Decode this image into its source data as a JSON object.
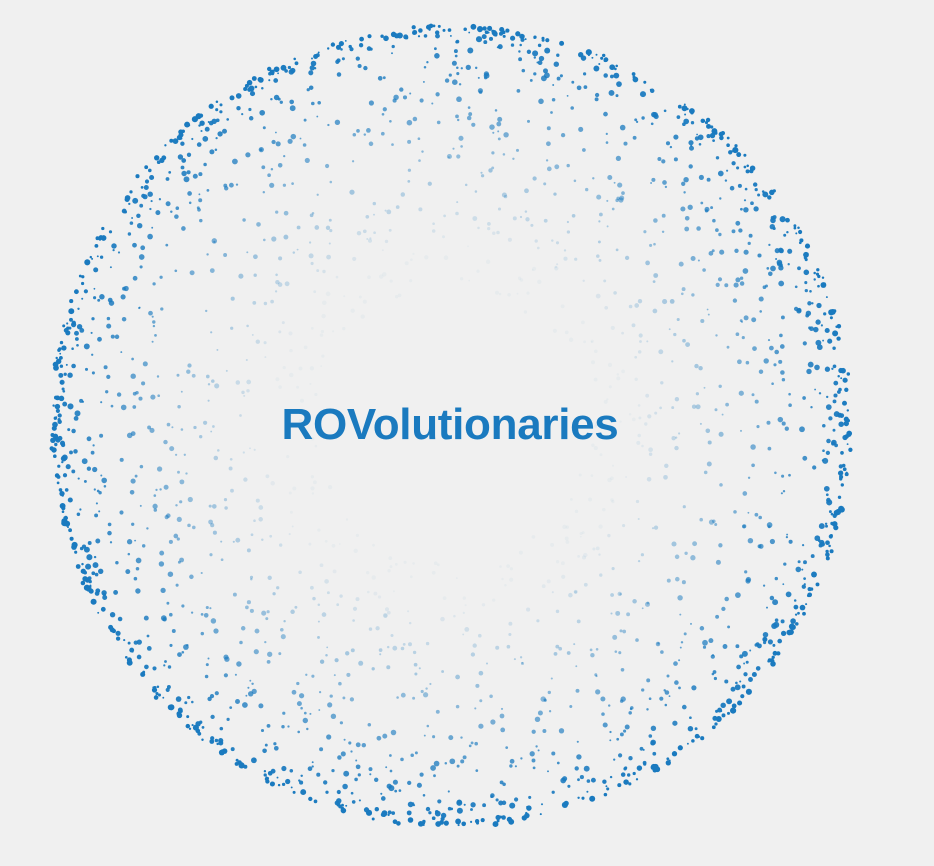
{
  "title": "ROVolutionaries",
  "colors": {
    "background": "#f0f0f0",
    "accent": "#1a7abf"
  },
  "particle_ring": {
    "icon": "scattered-dot-ring"
  }
}
